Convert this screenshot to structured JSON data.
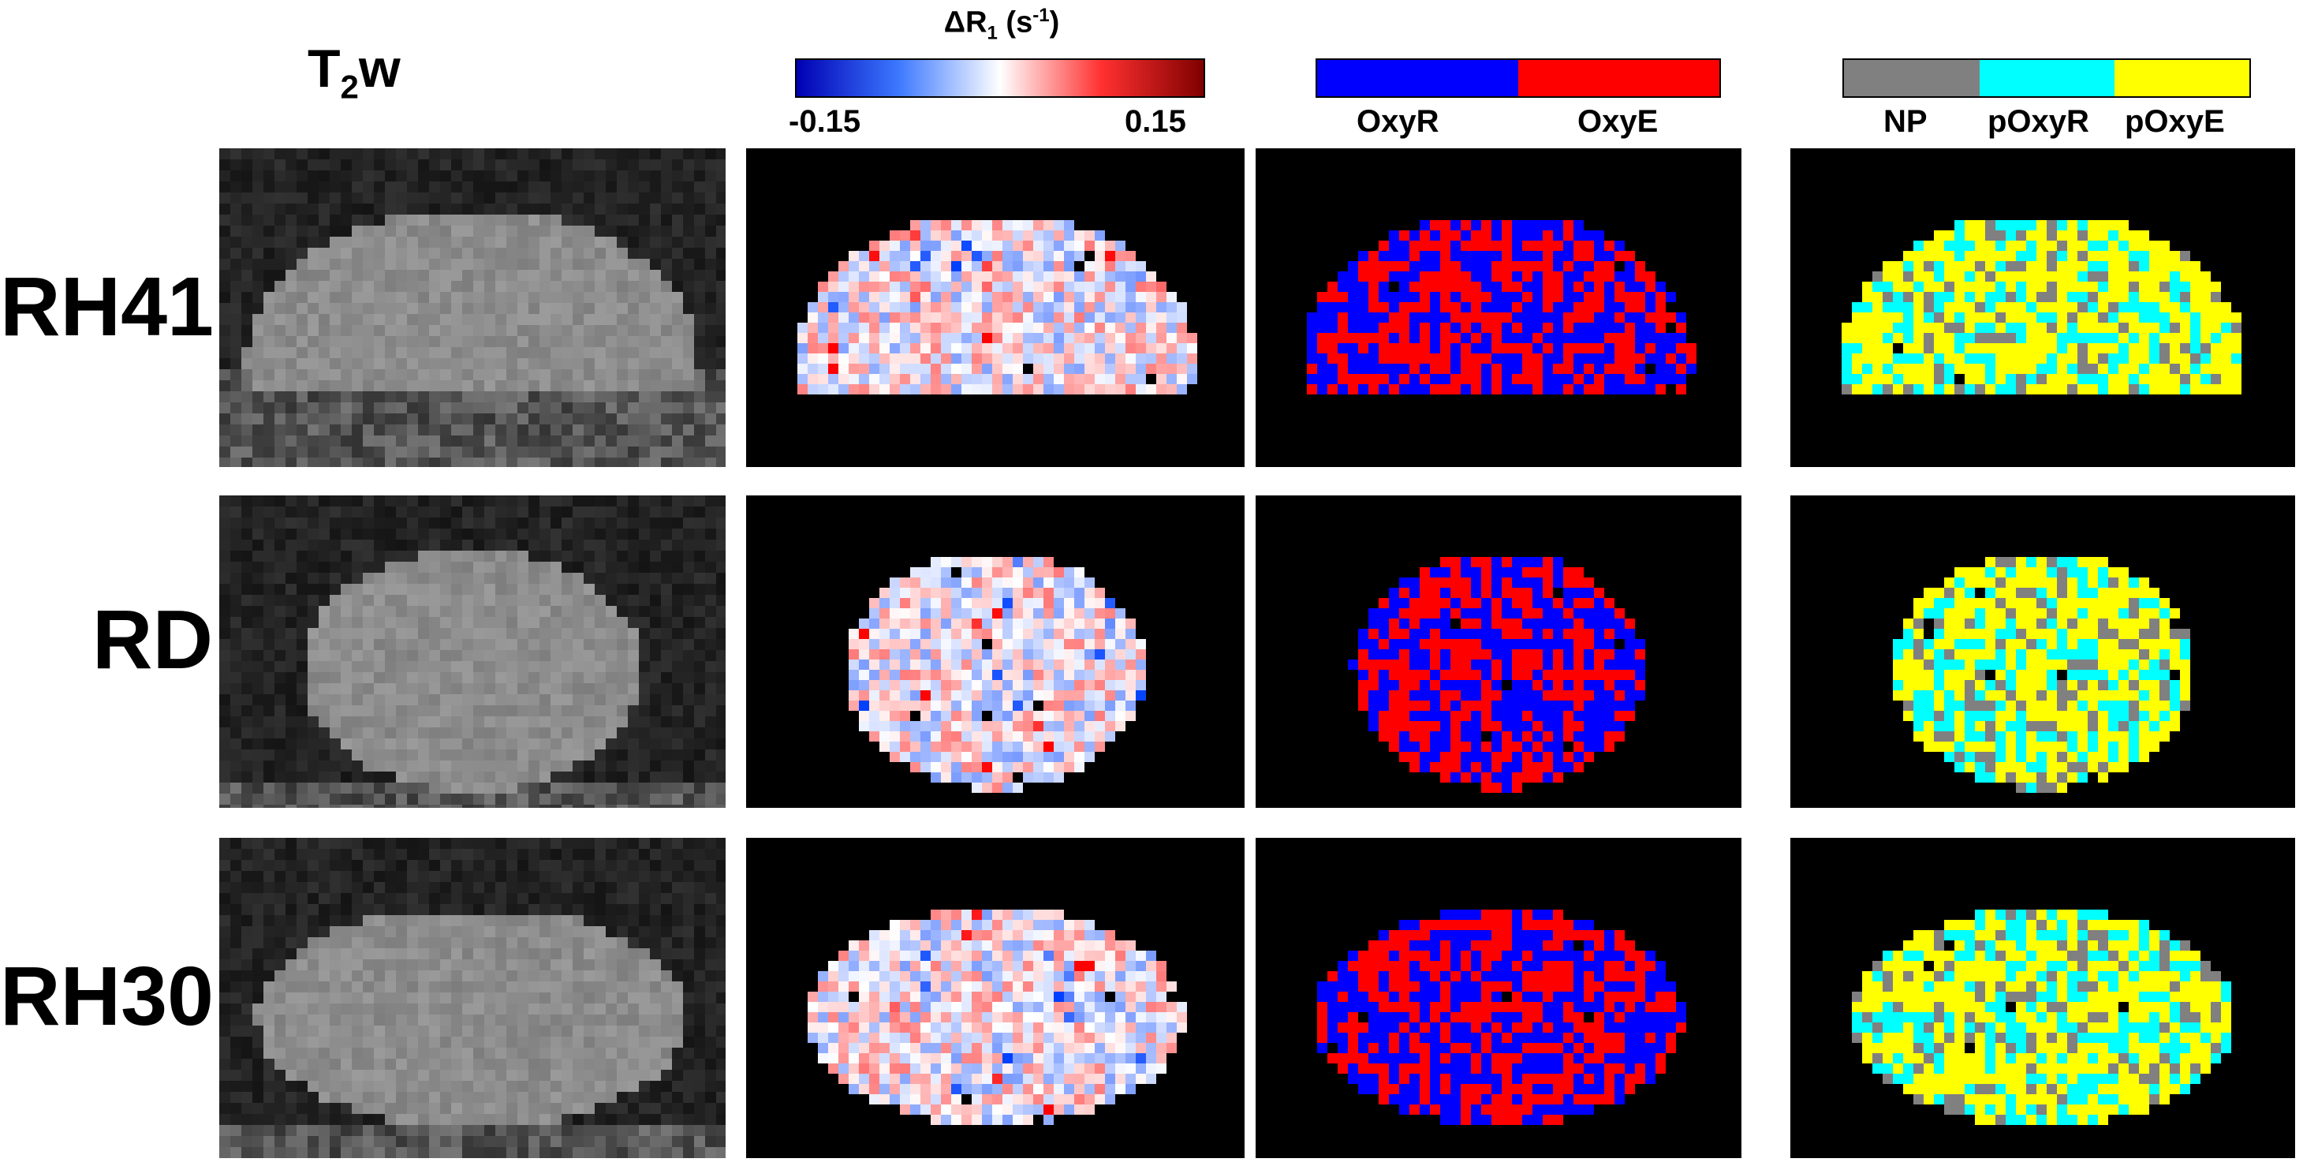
{
  "header": {
    "t2w_main": "T",
    "t2w_sub": "2",
    "t2w_tail": "w"
  },
  "colorbar_dr1": {
    "title_main": "ΔR",
    "title_sub": "1",
    "title_unit_open": " (s",
    "title_unit_sup": "-1",
    "title_unit_close": ")",
    "min_label": "-0.15",
    "max_label": "0.15",
    "colors": {
      "low": "#0000b3",
      "mid": "#ffffff",
      "high": "#800000"
    }
  },
  "colorbar_oxy": {
    "labels": [
      "OxyR",
      "OxyE"
    ],
    "colors": [
      "#0000ff",
      "#ff0000"
    ]
  },
  "colorbar_poxy": {
    "labels": [
      "NP",
      "pOxyR",
      "pOxyE"
    ],
    "colors": [
      "#808080",
      "#00ffff",
      "#ffff00"
    ]
  },
  "rows": [
    {
      "label": "RH41"
    },
    {
      "label": "RD"
    },
    {
      "label": "RH30"
    }
  ]
}
